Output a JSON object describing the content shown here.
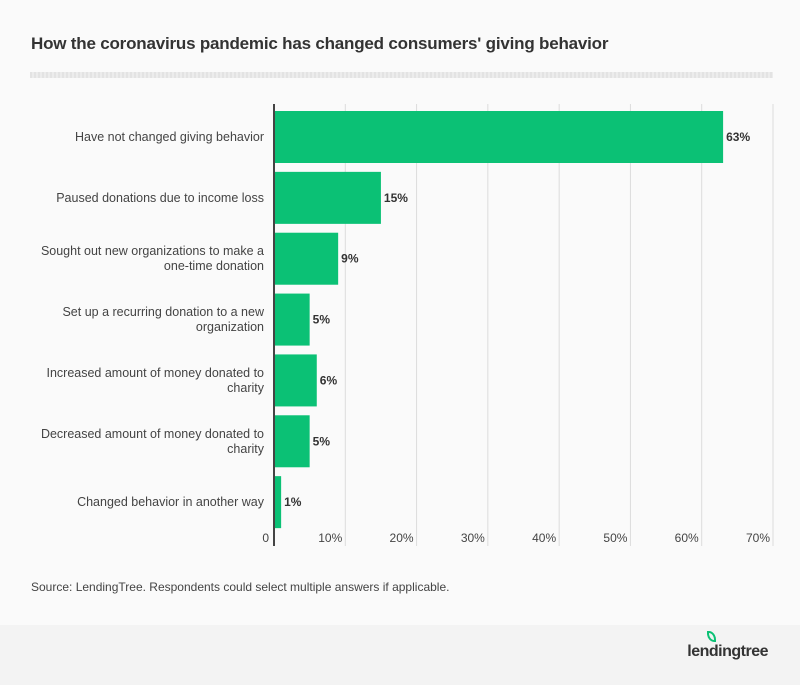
{
  "chart_data": {
    "type": "bar",
    "orientation": "horizontal",
    "title": "How the coronavirus pandemic has changed consumers' giving behavior",
    "categories": [
      [
        "Have not changed giving behavior"
      ],
      [
        "Paused donations due to income loss"
      ],
      [
        "Sought out new organizations to make a",
        "one-time donation"
      ],
      [
        "Set up a recurring donation to a new",
        "organization"
      ],
      [
        "Increased amount of money donated to",
        "charity"
      ],
      [
        "Decreased amount of money donated to",
        "charity"
      ],
      [
        "Changed behavior in another way"
      ]
    ],
    "values": [
      63,
      15,
      9,
      5,
      6,
      5,
      1
    ],
    "value_labels": [
      "63%",
      "15%",
      "9%",
      "5%",
      "6%",
      "5%",
      "1%"
    ],
    "xlim": [
      0,
      70
    ],
    "ticks": [
      0,
      10,
      20,
      30,
      40,
      50,
      60,
      70
    ],
    "tick_labels": [
      "0",
      "10%",
      "20%",
      "30%",
      "40%",
      "50%",
      "60%",
      "70%"
    ],
    "xlabel": "",
    "ylabel": "",
    "grid": true,
    "bar_color": "#0bc175"
  },
  "source": "Source: LendingTree. Respondents could select multiple answers if applicable.",
  "logo": "lendingtree"
}
